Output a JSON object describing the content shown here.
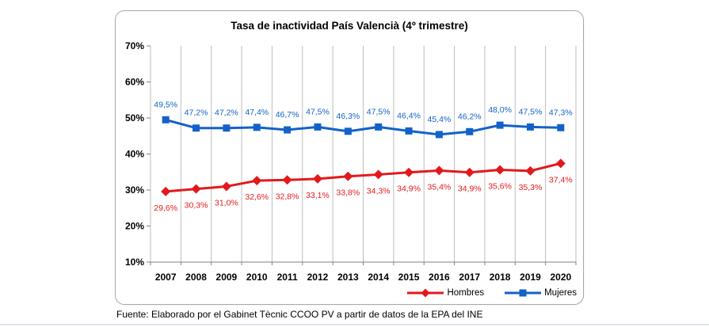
{
  "chart_data": {
    "type": "line",
    "title": "Tasa de inactividad País Valencià (4º trimestre)",
    "categories": [
      "2007",
      "2008",
      "2009",
      "2010",
      "2011",
      "2012",
      "2013",
      "2014",
      "2015",
      "2016",
      "2017",
      "2018",
      "2019",
      "2020"
    ],
    "series": [
      {
        "name": "Hombres",
        "color": "#E2191C",
        "marker": "diamond",
        "labels_position": "below",
        "values": [
          29.6,
          30.3,
          31.0,
          32.6,
          32.8,
          33.1,
          33.8,
          34.3,
          34.9,
          35.4,
          34.9,
          35.6,
          35.3,
          37.4
        ],
        "labels": [
          "29,6%",
          "30,3%",
          "31,0%",
          "32,6%",
          "32,8%",
          "33,1%",
          "33,8%",
          "34,3%",
          "34,9%",
          "35,4%",
          "34,9%",
          "35,6%",
          "35,3%",
          "37,4%"
        ]
      },
      {
        "name": "Mujeres",
        "color": "#1262C8",
        "marker": "square",
        "labels_position": "above",
        "values": [
          49.5,
          47.2,
          47.2,
          47.4,
          46.7,
          47.5,
          46.3,
          47.5,
          46.4,
          45.4,
          46.2,
          48.0,
          47.5,
          47.3
        ],
        "labels": [
          "49,5%",
          "47,2%",
          "47,2%",
          "47,4%",
          "46,7%",
          "47,5%",
          "46,3%",
          "47,5%",
          "46,4%",
          "45,4%",
          "46,2%",
          "48,0%",
          "47,5%",
          "47,3%"
        ]
      }
    ],
    "y_axis": {
      "min": 10,
      "max": 70,
      "step": 10,
      "tick_labels": [
        "70%",
        "60%",
        "50%",
        "40%",
        "30%",
        "20%",
        "10%"
      ]
    },
    "grid": "vertical-only",
    "legend_position": "bottom-right",
    "colors": {
      "gridline": "#BDBDBD",
      "axis": "#808080",
      "text": "#000000"
    }
  },
  "footer": {
    "source_text": "Fuente: Elaborado por el Gabinet Tècnic CCOO PV a partir de datos de la EPA del INE"
  }
}
